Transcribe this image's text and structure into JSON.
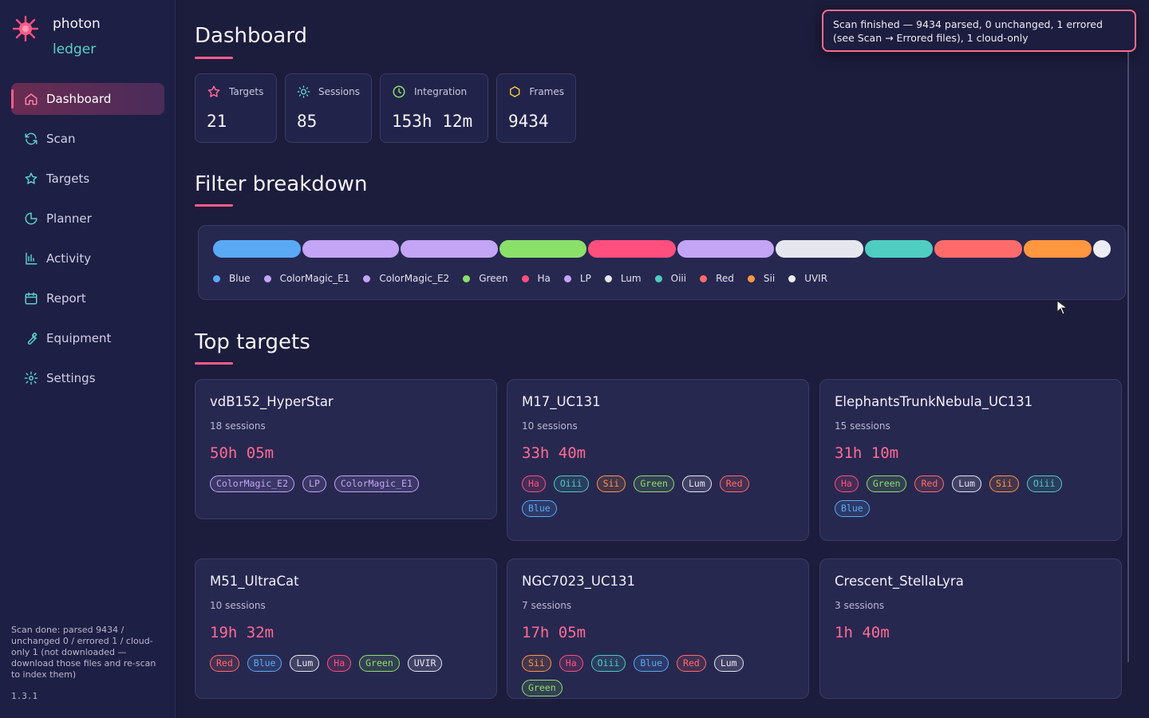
{
  "brand": {
    "name": "photon",
    "sub": "ledger"
  },
  "nav": [
    {
      "label": "Dashboard",
      "icon": "home-icon",
      "active": true
    },
    {
      "label": "Scan",
      "icon": "refresh-icon"
    },
    {
      "label": "Targets",
      "icon": "star-icon"
    },
    {
      "label": "Planner",
      "icon": "moon-icon"
    },
    {
      "label": "Activity",
      "icon": "bar-chart-icon"
    },
    {
      "label": "Report",
      "icon": "calendar-icon"
    },
    {
      "label": "Equipment",
      "icon": "wrench-icon"
    },
    {
      "label": "Settings",
      "icon": "gear-icon"
    }
  ],
  "sidebar_status": "Scan done: parsed 9434 / unchanged 0 / errored 1 / cloud-only 1 (not downloaded — download those files and re-scan to index them)",
  "version": "1.3.1",
  "page_title": "Dashboard",
  "toast": "Scan finished — 9434 parsed, 0 unchanged, 1 errored (see Scan → Errored files), 1 cloud-only",
  "stats": [
    {
      "label": "Targets",
      "value": "21",
      "icon": "star-icon"
    },
    {
      "label": "Sessions",
      "value": "85",
      "icon": "sun-icon"
    },
    {
      "label": "Integration",
      "value": "153h 12m",
      "icon": "clock-icon"
    },
    {
      "label": "Frames",
      "value": "9434",
      "icon": "hexagon-icon"
    }
  ],
  "filter_section_title": "Filter breakdown",
  "filters": [
    {
      "name": "Blue",
      "color": "#5aa9f5",
      "share": 0.099
    },
    {
      "name": "ColorMagic_E1",
      "color": "#c4a4f5",
      "share": 0.11
    },
    {
      "name": "ColorMagic_E2",
      "color": "#c4a4f5",
      "share": 0.11
    },
    {
      "name": "Green",
      "color": "#8be06a",
      "share": 0.099
    },
    {
      "name": "Ha",
      "color": "#ff4f7e",
      "share": 0.099
    },
    {
      "name": "LP",
      "color": "#c4a4f5",
      "share": 0.11
    },
    {
      "name": "Lum",
      "color": "#e6e6ee",
      "share": 0.099
    },
    {
      "name": "Oiii",
      "color": "#4ecdc0",
      "share": 0.077
    },
    {
      "name": "Red",
      "color": "#ff6b6b",
      "share": 0.099
    },
    {
      "name": "Sii",
      "color": "#ff9640",
      "share": 0.077
    },
    {
      "name": "UVIR",
      "color": "#ececf4",
      "share": 0.02
    }
  ],
  "top_section_title": "Top targets",
  "targets": [
    {
      "name": "vdB152_HyperStar",
      "sessions": "18 sessions",
      "time": "50h 05m",
      "tags": [
        "ColorMagic_E2",
        "LP",
        "ColorMagic_E1"
      ]
    },
    {
      "name": "M17_UC131",
      "sessions": "10 sessions",
      "time": "33h 40m",
      "tags": [
        "Ha",
        "Oiii",
        "Sii",
        "Green",
        "Lum",
        "Red",
        "Blue"
      ]
    },
    {
      "name": "ElephantsTrunkNebula_UC131",
      "sessions": "15 sessions",
      "time": "31h 10m",
      "tags": [
        "Ha",
        "Green",
        "Red",
        "Lum",
        "Sii",
        "Oiii",
        "Blue"
      ]
    },
    {
      "name": "M51_UltraCat",
      "sessions": "10 sessions",
      "time": "19h 32m",
      "tags": [
        "Red",
        "Blue",
        "Lum",
        "Ha",
        "Green",
        "UVIR"
      ]
    },
    {
      "name": "NGC7023_UC131",
      "sessions": "7 sessions",
      "time": "17h 05m",
      "tags": [
        "Sii",
        "Ha",
        "Oiii",
        "Blue",
        "Red",
        "Lum",
        "Green"
      ]
    },
    {
      "name": "Crescent_StellaLyra",
      "sessions": "3 sessions",
      "time": "1h 40m",
      "tags": []
    }
  ],
  "tag_colors": {
    "Ha": "#ff4f7e",
    "Oiii": "#4ecdc0",
    "Sii": "#ff9640",
    "Green": "#8be06a",
    "Lum": "#e6e6ee",
    "Red": "#ff6b6b",
    "Blue": "#5aa9f5",
    "LP": "#c4a4f5",
    "ColorMagic_E1": "#c4a4f5",
    "ColorMagic_E2": "#c4a4f5",
    "UVIR": "#e6e6ee"
  },
  "colors": {
    "accent": "#ff5c8a",
    "bg": "#1c1c3c",
    "card": "#272850"
  }
}
